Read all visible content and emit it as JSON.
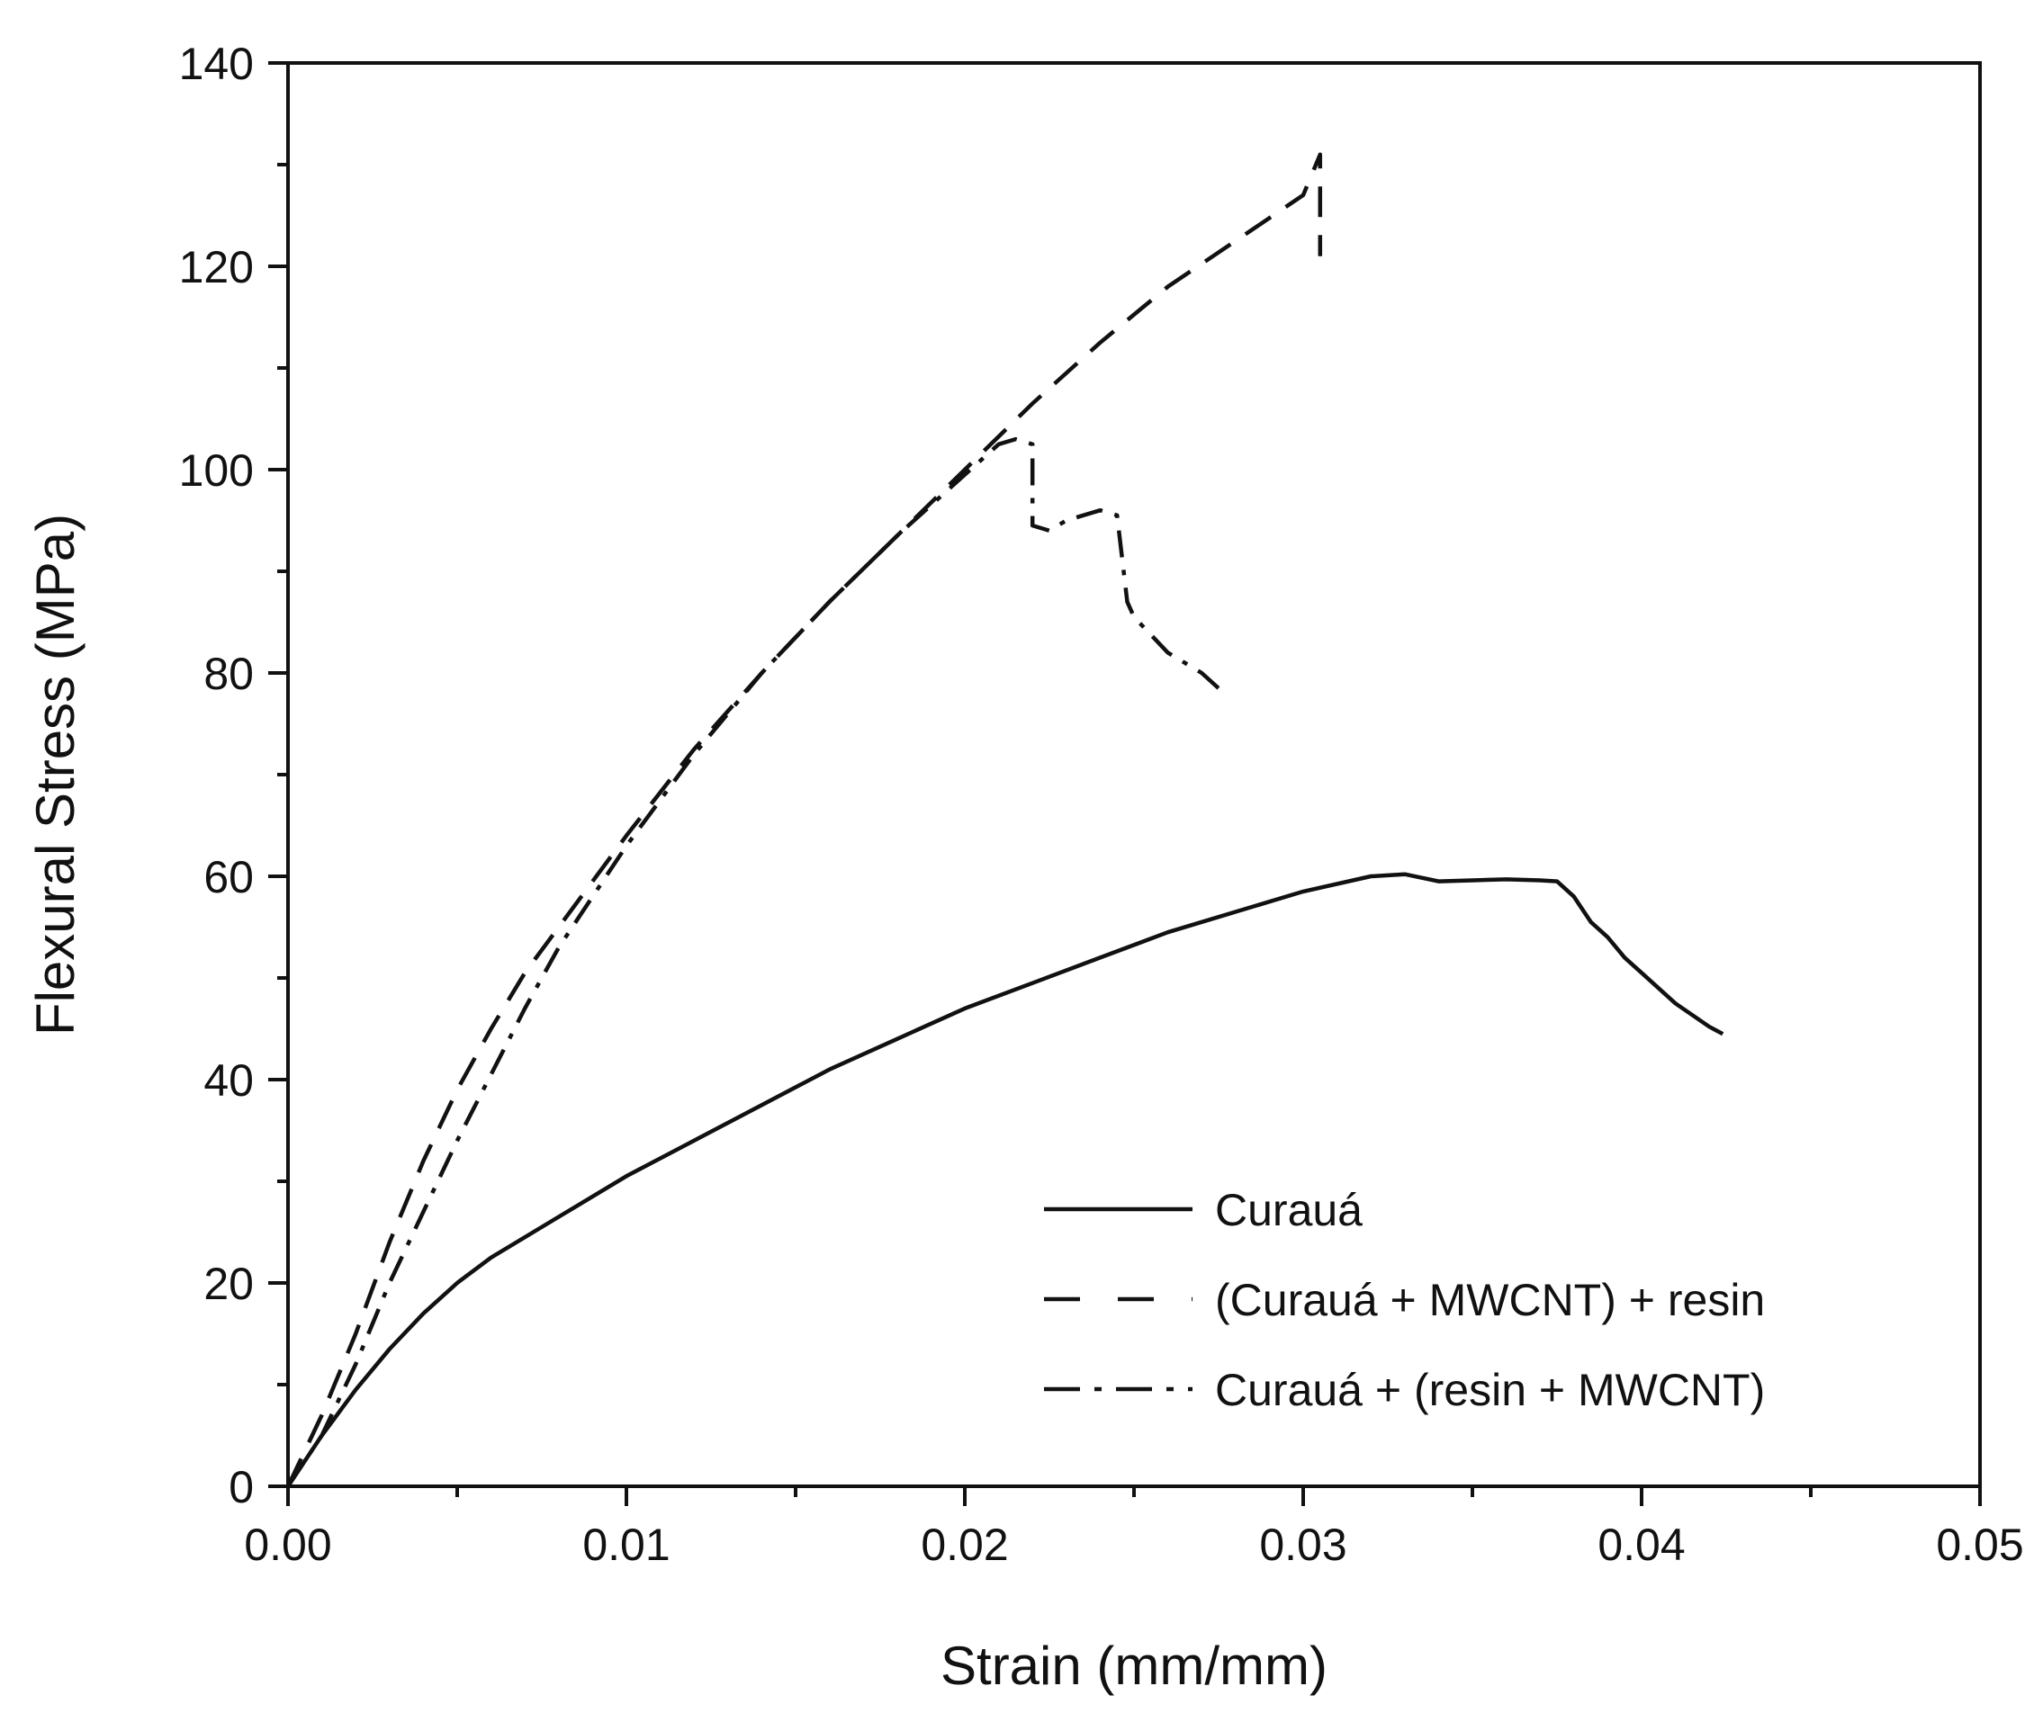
{
  "chart_data": {
    "type": "line",
    "title": "",
    "xlabel": "Strain (mm/mm)",
    "ylabel": "Flexural Stress (MPa)",
    "xlim": [
      0,
      0.05
    ],
    "ylim": [
      0,
      140
    ],
    "xticks": [
      0,
      0.01,
      0.02,
      0.03,
      0.04,
      0.05
    ],
    "xtick_labels": [
      "0.00",
      "0.01",
      "0.02",
      "0.03",
      "0.04",
      "0.05"
    ],
    "yticks": [
      0,
      20,
      40,
      60,
      80,
      100,
      120,
      140
    ],
    "ytick_labels": [
      "0",
      "20",
      "40",
      "60",
      "80",
      "100",
      "120",
      "140"
    ],
    "grid": false,
    "legend_position": "lower-right",
    "series": [
      {
        "name": "Curauá",
        "style": "solid",
        "x": [
          0,
          0.001,
          0.002,
          0.003,
          0.004,
          0.005,
          0.006,
          0.008,
          0.01,
          0.012,
          0.014,
          0.016,
          0.018,
          0.02,
          0.022,
          0.024,
          0.026,
          0.028,
          0.03,
          0.032,
          0.033,
          0.034,
          0.035,
          0.036,
          0.037,
          0.0375,
          0.038,
          0.0385,
          0.039,
          0.0395,
          0.04,
          0.041,
          0.042,
          0.0424
        ],
        "y": [
          0,
          5,
          9.5,
          13.5,
          17,
          20,
          22.5,
          26.5,
          30.5,
          34,
          37.5,
          41,
          44,
          47,
          49.5,
          52,
          54.5,
          56.5,
          58.5,
          60,
          60.2,
          59.5,
          59.6,
          59.7,
          59.6,
          59.5,
          58,
          55.5,
          54,
          52,
          50.5,
          47.5,
          45.2,
          44.5
        ]
      },
      {
        "name": "(Curauá + MWCNT) + resin",
        "style": "dashed",
        "x": [
          0,
          0.001,
          0.002,
          0.003,
          0.004,
          0.005,
          0.006,
          0.007,
          0.008,
          0.01,
          0.012,
          0.014,
          0.016,
          0.018,
          0.02,
          0.022,
          0.024,
          0.026,
          0.028,
          0.03,
          0.0305,
          0.0305
        ],
        "y": [
          0,
          7,
          15,
          24,
          32,
          39,
          45,
          50.5,
          55,
          64,
          72.5,
          80,
          87,
          93.5,
          100,
          106.5,
          112.5,
          118,
          122.5,
          127,
          131,
          121
        ]
      },
      {
        "name": "Curauá + (resin + MWCNT)",
        "style": "dash-dot",
        "x": [
          0,
          0.001,
          0.002,
          0.003,
          0.004,
          0.005,
          0.006,
          0.007,
          0.008,
          0.01,
          0.012,
          0.014,
          0.016,
          0.018,
          0.02,
          0.021,
          0.0215,
          0.022,
          0.022,
          0.0225,
          0.023,
          0.024,
          0.0245,
          0.0248,
          0.025,
          0.026,
          0.027,
          0.0275
        ],
        "y": [
          0,
          5,
          12,
          20,
          27,
          34,
          40.5,
          47,
          53,
          63,
          72,
          80,
          87,
          93.5,
          99.5,
          102.5,
          103,
          102.5,
          94.5,
          94,
          95,
          96,
          95.5,
          87,
          85.5,
          82,
          80,
          78.5
        ]
      }
    ]
  }
}
